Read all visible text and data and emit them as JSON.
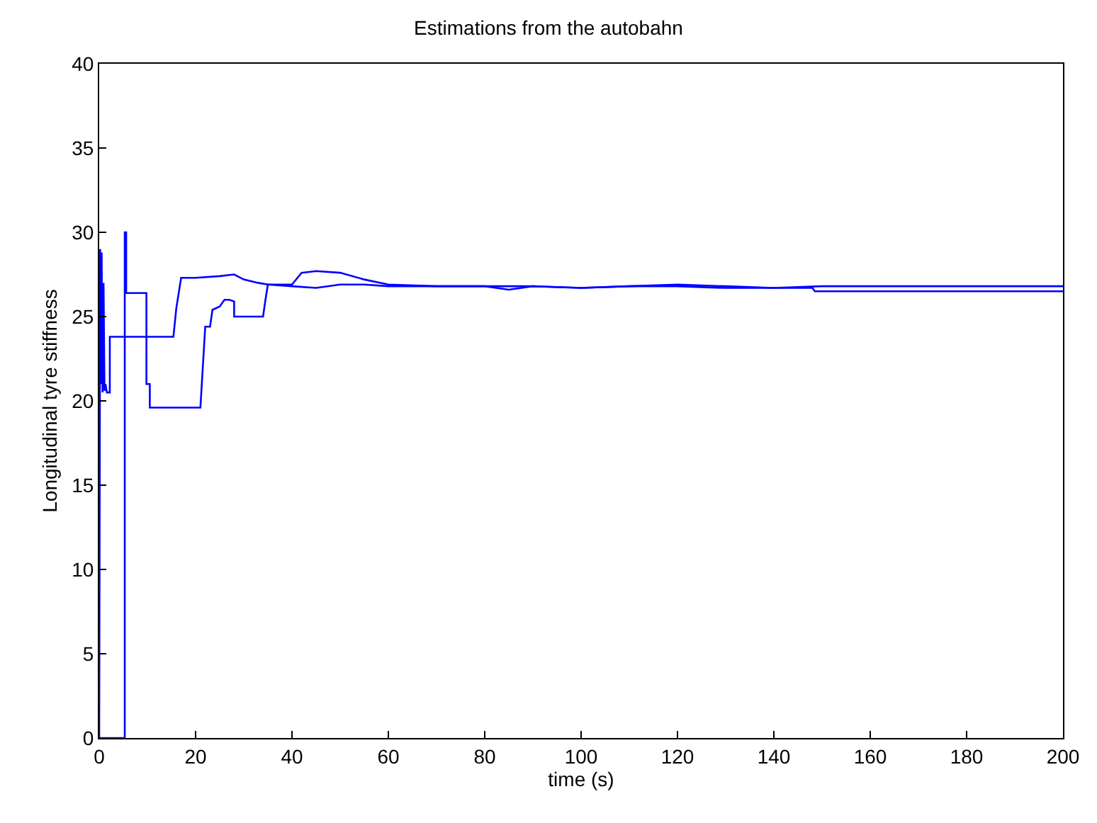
{
  "chart_data": {
    "type": "line",
    "title": "Estimations from the autobahn",
    "xlabel": "time (s)",
    "ylabel": "Longitudinal tyre stiffness",
    "xlim": [
      0,
      200
    ],
    "ylim": [
      0,
      40
    ],
    "xticks": [
      0,
      20,
      40,
      60,
      80,
      100,
      120,
      140,
      160,
      180,
      200
    ],
    "yticks": [
      0,
      5,
      10,
      15,
      20,
      25,
      30,
      35,
      40
    ],
    "line_style": "solid",
    "series": [
      {
        "color": "#0000ff",
        "x": [
          0,
          5.3,
          5.3,
          5.6,
          5.6,
          9.8,
          9.8,
          10.5,
          10.5,
          21,
          21.5,
          22,
          23,
          23.5,
          25,
          26,
          27,
          28,
          28,
          34,
          34.5,
          35,
          40,
          42,
          45,
          50,
          55,
          60,
          70,
          80,
          85,
          90,
          100,
          110,
          120,
          130,
          140,
          148,
          148.5,
          200
        ],
        "values": [
          0,
          0,
          30,
          30,
          26.4,
          26.4,
          21,
          21,
          19.6,
          19.6,
          22,
          24.4,
          24.4,
          25.4,
          25.6,
          26,
          26,
          25.9,
          25,
          25,
          26,
          26.9,
          26.9,
          27.6,
          27.7,
          27.6,
          27.2,
          26.9,
          26.8,
          26.8,
          26.6,
          26.8,
          26.7,
          26.8,
          26.8,
          26.7,
          26.7,
          26.7,
          26.5,
          26.5
        ]
      },
      {
        "color": "#0000ff",
        "x": [
          0,
          0.2,
          0.3,
          0.5,
          0.7,
          0.9,
          1.1,
          1.3,
          1.6,
          2.2,
          2.2,
          2.5,
          15.4,
          16,
          17,
          20,
          25,
          28,
          30,
          33,
          35,
          40,
          45,
          50,
          55,
          60,
          70,
          80,
          90,
          100,
          110,
          120,
          130,
          140,
          150,
          200
        ],
        "values": [
          0,
          29,
          21,
          28.8,
          20.5,
          27,
          20.6,
          21,
          20.5,
          20.5,
          23.8,
          23.8,
          23.8,
          25.5,
          27.3,
          27.3,
          27.4,
          27.5,
          27.2,
          27,
          26.9,
          26.8,
          26.7,
          26.9,
          26.9,
          26.8,
          26.8,
          26.8,
          26.8,
          26.7,
          26.8,
          26.9,
          26.8,
          26.7,
          26.8,
          26.8
        ]
      }
    ]
  }
}
